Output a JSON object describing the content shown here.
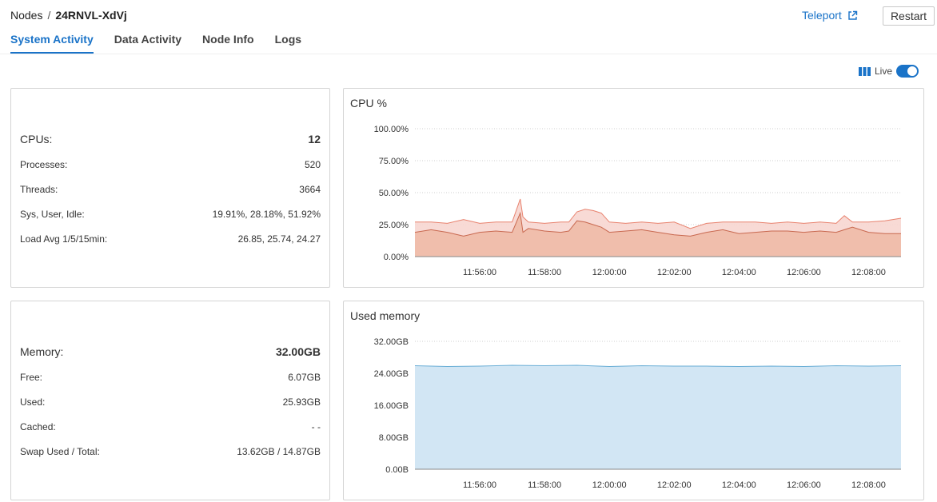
{
  "breadcrumb": {
    "root": "Nodes",
    "separator": "/",
    "current": "24RNVL-XdVj"
  },
  "header": {
    "teleport_label": "Teleport",
    "restart_label": "Restart"
  },
  "tabs": [
    {
      "label": "System Activity",
      "active": true
    },
    {
      "label": "Data Activity",
      "active": false
    },
    {
      "label": "Node Info",
      "active": false
    },
    {
      "label": "Logs",
      "active": false
    }
  ],
  "live": {
    "label": "Live",
    "enabled": true
  },
  "cpu_stats": {
    "cpus_label": "CPUs:",
    "cpus_value": "12",
    "processes_label": "Processes:",
    "processes_value": "520",
    "threads_label": "Threads:",
    "threads_value": "3664",
    "sys_label": "Sys, User, Idle:",
    "sys_value": "19.91%, 28.18%, 51.92%",
    "load_label": "Load Avg 1/5/15min:",
    "load_value": "26.85, 25.74, 24.27"
  },
  "memory_stats": {
    "memory_label": "Memory:",
    "memory_value": "32.00GB",
    "free_label": "Free:",
    "free_value": "6.07GB",
    "used_label": "Used:",
    "used_value": "25.93GB",
    "cached_label": "Cached:",
    "cached_value": "- -",
    "swap_label": "Swap Used / Total:",
    "swap_value": "13.62GB / 14.87GB"
  },
  "colors": {
    "accent": "#1a73c8",
    "cpu_user_fill": "#f7d6d0",
    "cpu_user_line": "#e8826e",
    "cpu_sys_fill": "#eeb8a4",
    "cpu_sys_line": "#c8684f",
    "memory_fill": "#d2e6f4",
    "memory_line": "#6aaed6"
  },
  "chart_data": [
    {
      "type": "area",
      "title": "CPU %",
      "x_ticks": [
        "11:56:00",
        "11:58:00",
        "12:00:00",
        "12:02:00",
        "12:04:00",
        "12:06:00",
        "12:08:00"
      ],
      "y_ticks": [
        "0.00%",
        "25.00%",
        "50.00%",
        "75.00%",
        "100.00%"
      ],
      "ylim": [
        0,
        100
      ],
      "x_range": [
        "11:54:00",
        "12:09:00"
      ],
      "grid": true,
      "series": [
        {
          "x": [
            "11:54:00",
            "11:54:30",
            "11:55:00",
            "11:55:30",
            "11:56:00",
            "11:56:30",
            "11:57:00",
            "11:57:15",
            "11:57:20",
            "11:57:30",
            "11:58:00",
            "11:58:30",
            "11:58:45",
            "11:59:00",
            "11:59:15",
            "11:59:30",
            "11:59:45",
            "12:00:00",
            "12:00:30",
            "12:01:00",
            "12:01:30",
            "12:02:00",
            "12:02:30",
            "12:03:00",
            "12:03:30",
            "12:04:00",
            "12:04:30",
            "12:05:00",
            "12:05:30",
            "12:06:00",
            "12:06:30",
            "12:07:00",
            "12:07:15",
            "12:07:30",
            "12:08:00",
            "12:08:30",
            "12:09:00"
          ],
          "values": [
            27,
            27,
            26,
            29,
            26,
            27,
            27,
            45,
            31,
            27,
            26,
            27,
            27,
            35,
            37,
            36,
            34,
            27,
            26,
            27,
            26,
            27,
            22,
            26,
            27,
            27,
            27,
            26,
            27,
            26,
            27,
            26,
            32,
            27,
            27,
            28,
            30
          ]
        },
        {
          "x": [
            "11:54:00",
            "11:54:30",
            "11:55:00",
            "11:55:30",
            "11:56:00",
            "11:56:30",
            "11:57:00",
            "11:57:15",
            "11:57:20",
            "11:57:30",
            "11:58:00",
            "11:58:30",
            "11:58:45",
            "11:59:00",
            "11:59:15",
            "11:59:30",
            "11:59:45",
            "12:00:00",
            "12:00:30",
            "12:01:00",
            "12:01:30",
            "12:02:00",
            "12:02:30",
            "12:03:00",
            "12:03:30",
            "12:04:00",
            "12:04:30",
            "12:05:00",
            "12:05:30",
            "12:06:00",
            "12:06:30",
            "12:07:00",
            "12:07:15",
            "12:07:30",
            "12:08:00",
            "12:08:30",
            "12:09:00"
          ],
          "values": [
            19,
            21,
            19,
            16,
            19,
            20,
            19,
            34,
            19,
            22,
            20,
            19,
            20,
            28,
            27,
            25,
            23,
            19,
            20,
            21,
            19,
            17,
            16,
            19,
            21,
            18,
            19,
            20,
            20,
            19,
            20,
            19,
            21,
            23,
            19,
            18,
            18
          ]
        }
      ]
    },
    {
      "type": "area",
      "title": "Used memory",
      "x_ticks": [
        "11:56:00",
        "11:58:00",
        "12:00:00",
        "12:02:00",
        "12:04:00",
        "12:06:00",
        "12:08:00"
      ],
      "y_ticks": [
        "0.00B",
        "8.00GB",
        "16.00GB",
        "24.00GB",
        "32.00GB"
      ],
      "ylim": [
        0,
        32
      ],
      "x_range": [
        "11:54:00",
        "12:09:00"
      ],
      "grid": true,
      "series": [
        {
          "x": [
            "11:54:00",
            "11:55:00",
            "11:56:00",
            "11:57:00",
            "11:58:00",
            "11:59:00",
            "12:00:00",
            "12:01:00",
            "12:02:00",
            "12:03:00",
            "12:04:00",
            "12:05:00",
            "12:06:00",
            "12:07:00",
            "12:08:00",
            "12:09:00"
          ],
          "values": [
            25.9,
            25.7,
            25.8,
            26.0,
            25.9,
            26.0,
            25.7,
            25.9,
            25.8,
            25.8,
            25.7,
            25.8,
            25.7,
            25.9,
            25.8,
            25.9
          ]
        }
      ]
    }
  ]
}
